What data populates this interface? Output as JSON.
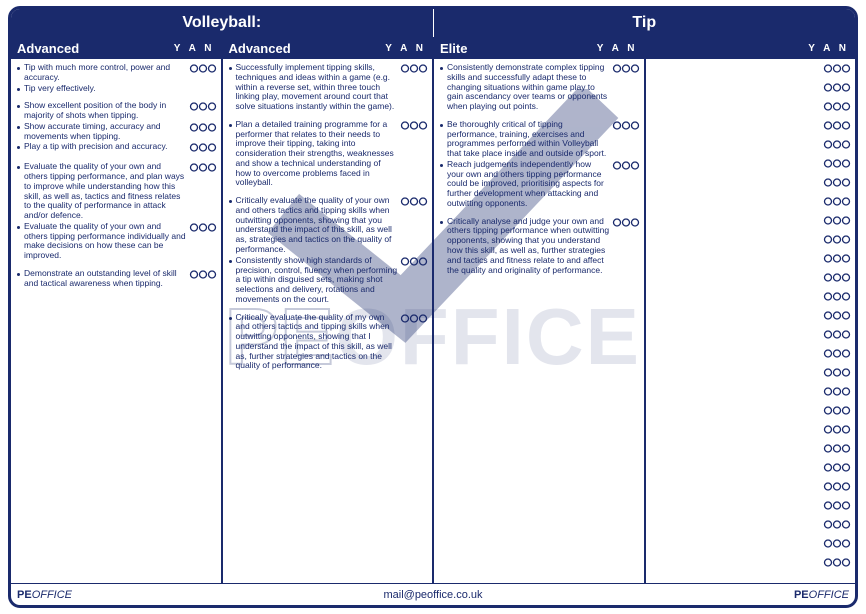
{
  "topbar": {
    "left": "Volleyball:",
    "right": "Tip"
  },
  "yan_header": "Y A N",
  "columns": [
    {
      "title": "Advanced",
      "items": [
        {
          "text": "Tip with much more control, power and accuracy.",
          "bubbles": true,
          "gap": false
        },
        {
          "text": "Tip very effectively.",
          "bubbles": false,
          "gap": false
        },
        {
          "text": "Show excellent position of the body in majority of shots when tipping.",
          "bubbles": true,
          "gap": true
        },
        {
          "text": "Show accurate timing, accuracy and movements when tipping.",
          "bubbles": true,
          "gap": false
        },
        {
          "text": "Play a tip with precision and accuracy.",
          "bubbles": true,
          "gap": false
        },
        {
          "text": "Evaluate the quality of your own and others tipping performance, and plan ways to improve while understanding how this skill, as well as, tactics and fitness relates to the quality of performance in attack and/or defence.",
          "bubbles": true,
          "gap": true
        },
        {
          "text": "Evaluate the quality of your own and others tipping performance individually and make decisions on how these can be improved.",
          "bubbles": true,
          "gap": false
        },
        {
          "text": "Demonstrate an outstanding level of skill and tactical awareness when tipping.",
          "bubbles": true,
          "gap": true
        }
      ]
    },
    {
      "title": "Advanced",
      "items": [
        {
          "text": "Successfully implement tipping skills, techniques and ideas within a game (e.g. within a reverse set, within three touch linking play, movement around court that solve situations instantly within the game).",
          "bubbles": true,
          "gap": false
        },
        {
          "text": "Plan a detailed training programme for a performer that relates to their needs to improve their tipping, taking into consideration their strengths, weaknesses and show a technical understanding of how to overcome problems faced in volleyball.",
          "bubbles": true,
          "gap": true
        },
        {
          "text": "Critically evaluate the quality of your own and others tactics and tipping skills when outwitting opponents, showing that you understand the impact of this skill, as well as, strategies and tactics on the quality of performance.",
          "bubbles": true,
          "gap": true
        },
        {
          "text": "Consistently show high standards of precision, control, fluency when performing a tip within disguised sets, making shot selections and delivery, rotations and movements on the court.",
          "bubbles": true,
          "gap": false
        },
        {
          "text": "Critically evaluate the quality of my own and others tactics and tipping skills when outwitting opponents, showing that I understand the impact of this skill, as well as, further strategies and tactics on the quality of performance.",
          "bubbles": true,
          "gap": true
        }
      ]
    },
    {
      "title": "Elite",
      "items": [
        {
          "text": "Consistently demonstrate complex tipping skills and successfully adapt these to changing situations within game play to gain ascendancy over teams or opponents when playing out points.",
          "bubbles": true,
          "gap": false
        },
        {
          "text": "Be thoroughly critical of tipping performance, training, exercises and programmes performed within Volleyball that take place inside and outside of sport.",
          "bubbles": true,
          "gap": true
        },
        {
          "text": "Reach judgements independently how your own and others tipping performance could be improved, prioritising aspects for further development when attacking and outwitting opponents.",
          "bubbles": true,
          "gap": false
        },
        {
          "text": "Critically analyse and judge your own and others tipping performance when outwitting opponents, showing that you understand how this skill, as well as, further strategies and tactics and fitness relate to and affect the quality and originality of performance.",
          "bubbles": true,
          "gap": true
        }
      ]
    },
    {
      "title": "",
      "empty_rows": 27
    }
  ],
  "footer": {
    "mail": "mail@peoffice.co.uk",
    "logo_pe": "PE",
    "logo_office": "OFFICE"
  },
  "watermark": {
    "pe": "PE",
    "office": "OFFICE"
  },
  "colors": {
    "primary": "#1a2a6c",
    "bg": "#ffffff"
  }
}
